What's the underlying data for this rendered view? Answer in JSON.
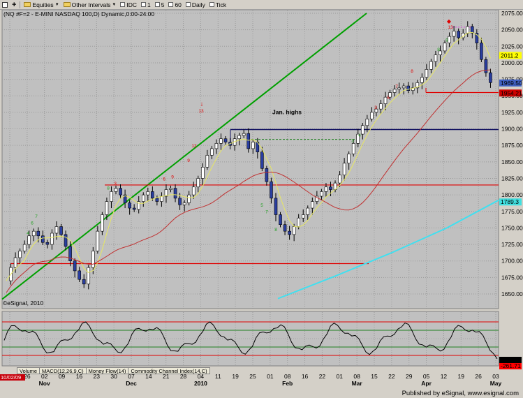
{
  "toolbar": {
    "equities": "Equities",
    "other_intervals": "Other Intervals",
    "idc": "IDC",
    "i1": "1",
    "i5": "5",
    "i60": "60",
    "daily": "Daily",
    "tick": "Tick"
  },
  "chart": {
    "title": "(NQ #F=2 - E-MINI NASDAQ 100,D) Dynamic,0:00-24:00",
    "watermark": "©eSignal, 2010",
    "annotation_jan_highs": "Jan. highs",
    "price_ticks": [
      "2075.00",
      "2050.00",
      "2025.00",
      "2000.00",
      "1975.00",
      "1950.00",
      "1925.00",
      "1900.00",
      "1875.00",
      "1850.00",
      "1825.00",
      "1800.00",
      "1775.00",
      "1750.00",
      "1725.00",
      "1700.00",
      "1675.00",
      "1650.00"
    ],
    "price_badges": [
      {
        "label": "2011.2",
        "bg": "#ffff00",
        "fg": "#808000"
      },
      {
        "label": "1969.50",
        "bg": "#4060c0",
        "fg": "#ffffff"
      },
      {
        "label": "1954.21",
        "bg": "#d00000",
        "fg": "#ffffff"
      },
      {
        "label": "1789.3",
        "bg": "#40e0e0",
        "fg": "#ffffff"
      }
    ],
    "date_ticks": [
      "19",
      "26",
      "02",
      "09",
      "16",
      "23",
      "30",
      "07",
      "14",
      "21",
      "28",
      "04",
      "11",
      "19",
      "25",
      "01",
      "08",
      "16",
      "22",
      "01",
      "08",
      "15",
      "22",
      "29",
      "05",
      "12",
      "19",
      "26",
      "03"
    ],
    "month_ticks": [
      "Nov",
      "Dec",
      "2010",
      "Feb",
      "Mar",
      "Apr",
      "May"
    ],
    "cci_badges": [
      {
        "label": "-200.14",
        "bg": "#000000",
        "fg": "#ffffff"
      },
      {
        "label": "-261.71",
        "bg": "#ff0000",
        "fg": "#ffffff"
      }
    ],
    "current_date": "10/02/09",
    "colors": {
      "background": "#c0c0c0",
      "up_candle": "#ffffff",
      "down_candle": "#2a3ea0",
      "trendline": "#00a000",
      "ma_fast": "#e8e860",
      "ma_slow": "#c03030",
      "ma_long": "#40e0f0",
      "jan_highs_line": "#101060",
      "support_red": "#e00000",
      "cci_line": "#000000",
      "td_sell": "#e00000",
      "td_buy": "#20a020"
    }
  },
  "study_tabs": [
    "Volume",
    "MACD(12,26,9,C)",
    "Money Flow(14)",
    "Commodity Channel Index(14,C)"
  ],
  "footer": {
    "published": "Published by eSignal, www.esignal.com"
  }
}
